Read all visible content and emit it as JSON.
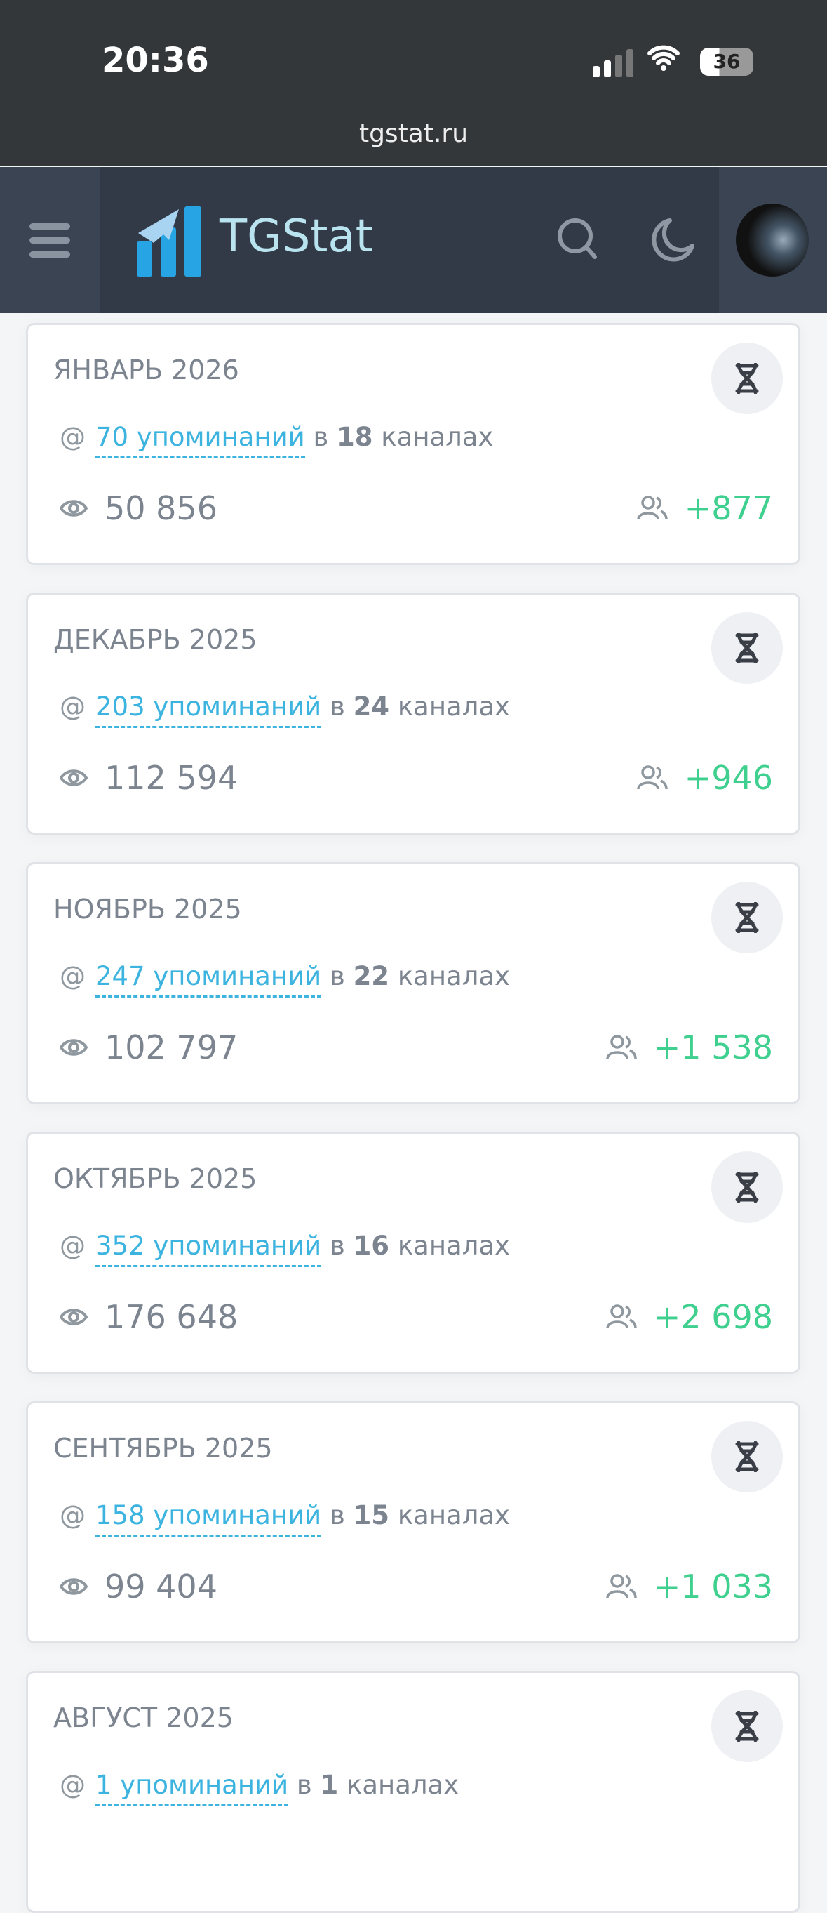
{
  "status_bar": {
    "time": "20:36",
    "battery": "36"
  },
  "browser": {
    "url": "tgstat.ru"
  },
  "header": {
    "brand": "TGStat"
  },
  "colors": {
    "accent": "#3cb4df",
    "positive": "#3fcf8e",
    "header": "#323a47"
  },
  "cards": [
    {
      "title": "ЯНВАРЬ 2026",
      "mentions": "70 упоминаний",
      "in": "в",
      "channels": "18",
      "channels_label": "каналах",
      "views": "50 856",
      "subscribers": "+877"
    },
    {
      "title": "ДЕКАБРЬ 2025",
      "mentions": "203 упоминаний",
      "in": "в",
      "channels": "24",
      "channels_label": "каналах",
      "views": "112 594",
      "subscribers": "+946"
    },
    {
      "title": "НОЯБРЬ 2025",
      "mentions": "247 упоминаний",
      "in": "в",
      "channels": "22",
      "channels_label": "каналах",
      "views": "102 797",
      "subscribers": "+1 538"
    },
    {
      "title": "ОКТЯБРЬ 2025",
      "mentions": "352 упоминаний",
      "in": "в",
      "channels": "16",
      "channels_label": "каналах",
      "views": "176 648",
      "subscribers": "+2 698"
    },
    {
      "title": "СЕНТЯБРЬ 2025",
      "mentions": "158 упоминаний",
      "in": "в",
      "channels": "15",
      "channels_label": "каналах",
      "views": "99 404",
      "subscribers": "+1 033"
    },
    {
      "title": "АВГУСТ 2025",
      "mentions": "1 упоминаний",
      "in": "в",
      "channels": "1",
      "channels_label": "каналах"
    }
  ]
}
